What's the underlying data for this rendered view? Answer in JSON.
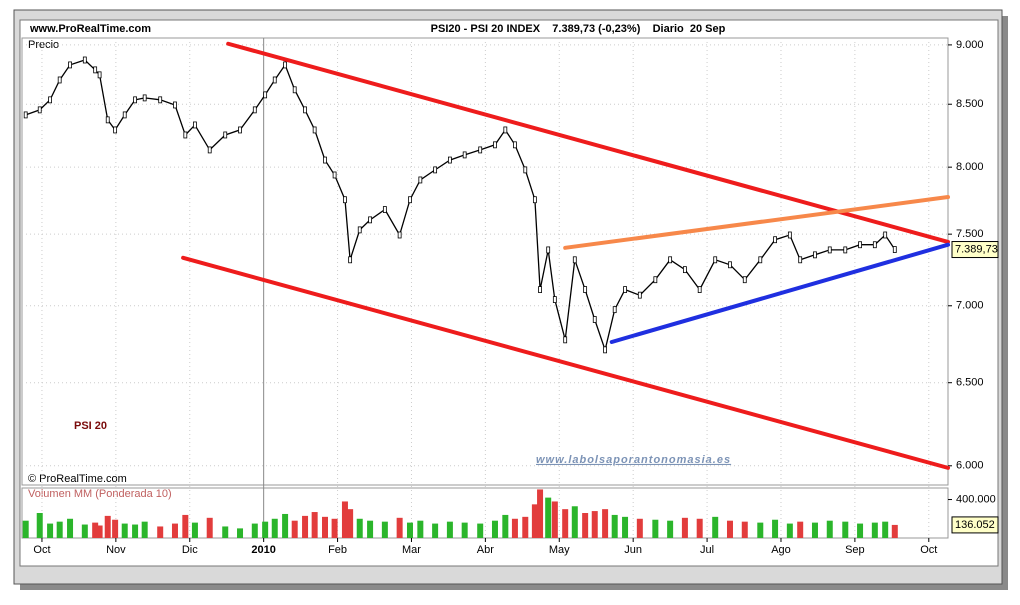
{
  "chart_data": [
    {
      "type": "line",
      "log_scale": true,
      "color": "#000000",
      "source": "www.ProRealTime.com",
      "title": "PSI20 - PSI 20 INDEX    7.389,73 (-0,23%)    Diario  20 Sep",
      "ylabel": "Precio",
      "annotations": [
        "PSI 20",
        "www.labolsaporantonomasia.es",
        "© ProRealTime.com"
      ],
      "last_label": "7.389,73",
      "x": [
        -0.22,
        -0.03,
        0.11,
        0.24,
        0.38,
        0.58,
        0.72,
        0.78,
        0.89,
        0.99,
        1.12,
        1.26,
        1.39,
        1.6,
        1.8,
        1.94,
        2.07,
        2.27,
        2.48,
        2.68,
        2.88,
        3.02,
        3.15,
        3.29,
        3.42,
        3.56,
        3.69,
        3.83,
        3.96,
        4.1,
        4.17,
        4.3,
        4.44,
        4.64,
        4.84,
        4.98,
        5.12,
        5.32,
        5.52,
        5.72,
        5.93,
        6.13,
        6.27,
        6.4,
        6.54,
        6.67,
        6.74,
        6.85,
        6.94,
        7.08,
        7.21,
        7.35,
        7.48,
        7.62,
        7.75,
        7.89,
        8.09,
        8.3,
        8.5,
        8.7,
        8.9,
        9.11,
        9.31,
        9.51,
        9.72,
        9.92,
        10.12,
        10.26,
        10.46,
        10.66,
        10.87,
        11.07,
        11.27,
        11.41,
        11.54
      ],
      "values": [
        8413,
        8454,
        8536,
        8701,
        8828,
        8870,
        8786,
        8744,
        8373,
        8292,
        8413,
        8536,
        8552,
        8536,
        8494,
        8252,
        8332,
        8134,
        8252,
        8292,
        8454,
        8577,
        8701,
        8828,
        8619,
        8454,
        8292,
        8055,
        7940,
        7753,
        7317,
        7531,
        7604,
        7680,
        7494,
        7753,
        7902,
        7979,
        8055,
        8095,
        8134,
        8174,
        8292,
        8174,
        7979,
        7753,
        7110,
        7387,
        7042,
        6774,
        7317,
        7110,
        6908,
        6709,
        6974,
        7110,
        7072,
        7178,
        7317,
        7248,
        7110,
        7317,
        7282,
        7178,
        7317,
        7460,
        7494,
        7317,
        7352,
        7387,
        7387,
        7424,
        7424,
        7494,
        7389.73
      ],
      "xlim": [
        -0.27,
        12.26
      ],
      "xticks": [
        {
          "value": 0,
          "label": "Oct"
        },
        {
          "value": 1,
          "label": "Nov"
        },
        {
          "value": 2,
          "label": "Dic"
        },
        {
          "value": 3,
          "label": "2010"
        },
        {
          "value": 4,
          "label": "Feb"
        },
        {
          "value": 5,
          "label": "Mar"
        },
        {
          "value": 6,
          "label": "Abr"
        },
        {
          "value": 7,
          "label": "May"
        },
        {
          "value": 8,
          "label": "Jun"
        },
        {
          "value": 9,
          "label": "Jul"
        },
        {
          "value": 10,
          "label": "Ago"
        },
        {
          "value": 11,
          "label": "Sep"
        },
        {
          "value": 12,
          "label": "Oct"
        }
      ],
      "ylim": [
        5890,
        9060
      ],
      "yticks": [
        {
          "value": 6000,
          "label": "6.000"
        },
        {
          "value": 6500,
          "label": "6.500"
        },
        {
          "value": 7000,
          "label": "7.000"
        },
        {
          "value": 7500,
          "label": "7.500"
        },
        {
          "value": 8000,
          "label": "8.000"
        },
        {
          "value": 8500,
          "label": "8.500"
        },
        {
          "value": 9000,
          "label": "9.000"
        }
      ],
      "grid": true,
      "trendlines": [
        {
          "color": "#ee1c1c",
          "x": [
            2.52,
            12.26
          ],
          "y": [
            9010,
            7444
          ]
        },
        {
          "color": "#ee1c1c",
          "x": [
            1.91,
            12.26
          ],
          "y": [
            7331,
            5988
          ]
        },
        {
          "color": "#f7884a",
          "x": [
            7.08,
            12.26
          ],
          "y": [
            7402,
            7773
          ]
        },
        {
          "color": "#1f2fe0",
          "x": [
            7.71,
            12.26
          ],
          "y": [
            6760,
            7424
          ]
        }
      ]
    },
    {
      "type": "bar",
      "ylabel": "Volumen MM (Ponderada 10)",
      "last_label": "136.052",
      "up_color": "#2bb52b",
      "down_color": "#e23c3c",
      "x": [
        -0.22,
        -0.03,
        0.11,
        0.24,
        0.38,
        0.58,
        0.72,
        0.78,
        0.89,
        0.99,
        1.12,
        1.26,
        1.39,
        1.6,
        1.8,
        1.94,
        2.07,
        2.27,
        2.48,
        2.68,
        2.88,
        3.02,
        3.15,
        3.29,
        3.42,
        3.56,
        3.69,
        3.83,
        3.96,
        4.1,
        4.17,
        4.3,
        4.44,
        4.64,
        4.84,
        4.98,
        5.12,
        5.32,
        5.52,
        5.72,
        5.93,
        6.13,
        6.27,
        6.4,
        6.54,
        6.67,
        6.74,
        6.85,
        6.94,
        7.08,
        7.21,
        7.35,
        7.48,
        7.62,
        7.75,
        7.89,
        8.09,
        8.3,
        8.5,
        8.7,
        8.9,
        9.11,
        9.31,
        9.51,
        9.72,
        9.92,
        10.12,
        10.26,
        10.46,
        10.66,
        10.87,
        11.07,
        11.27,
        11.41,
        11.54
      ],
      "values": [
        180000,
        260000,
        150000,
        170000,
        200000,
        140000,
        160000,
        130000,
        230000,
        190000,
        150000,
        140000,
        170000,
        120000,
        150000,
        240000,
        160000,
        210000,
        120000,
        100000,
        150000,
        170000,
        200000,
        250000,
        180000,
        230000,
        270000,
        220000,
        200000,
        380000,
        300000,
        200000,
        180000,
        170000,
        210000,
        160000,
        180000,
        150000,
        170000,
        160000,
        150000,
        180000,
        240000,
        200000,
        220000,
        350000,
        505000,
        420000,
        380000,
        300000,
        330000,
        260000,
        280000,
        300000,
        240000,
        220000,
        200000,
        190000,
        180000,
        210000,
        200000,
        220000,
        180000,
        170000,
        160000,
        190000,
        150000,
        170000,
        160000,
        180000,
        170000,
        150000,
        160000,
        170000,
        136052
      ],
      "xlim": [
        -0.27,
        12.26
      ],
      "ylim": [
        0,
        520000
      ],
      "yticks": [
        {
          "value": 400000,
          "label": "400.000"
        }
      ]
    }
  ]
}
